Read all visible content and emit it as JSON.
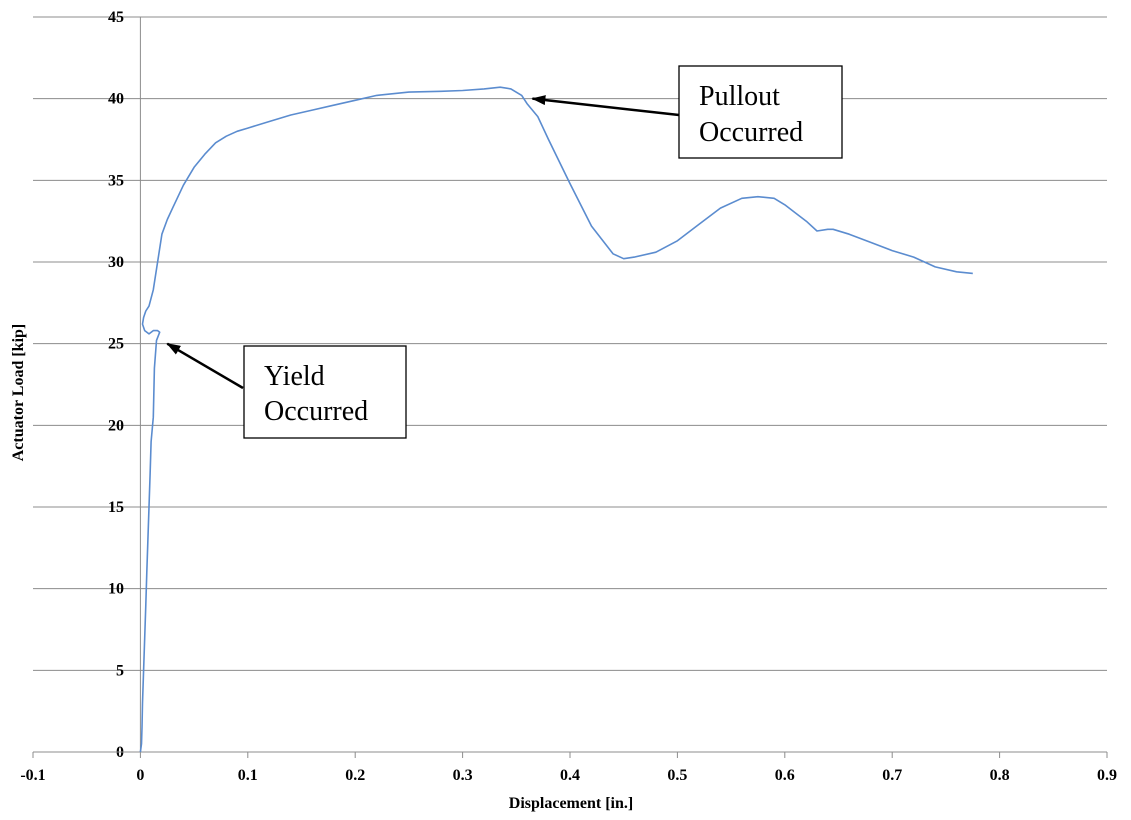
{
  "chart_data": {
    "type": "line",
    "xlabel": "Displacement [in.]",
    "ylabel": "Actuator Load [kip]",
    "xlim": [
      -0.1,
      0.9
    ],
    "ylim": [
      0,
      45
    ],
    "x_ticks": [
      "-0.1",
      "0",
      "0.1",
      "0.2",
      "0.3",
      "0.4",
      "0.5",
      "0.6",
      "0.7",
      "0.8",
      "0.9"
    ],
    "y_ticks": [
      "0",
      "5",
      "10",
      "15",
      "20",
      "25",
      "30",
      "35",
      "40",
      "45"
    ],
    "grid": "horizontal",
    "line_color": "#5b8ccf",
    "series": [
      {
        "x": [
          0.0,
          0.001,
          0.0015,
          0.002,
          0.003,
          0.004,
          0.005,
          0.006,
          0.007,
          0.008,
          0.009,
          0.01,
          0.012,
          0.013,
          0.015,
          0.018,
          0.016,
          0.012,
          0.008,
          0.004,
          0.002,
          0.003,
          0.005,
          0.008,
          0.012,
          0.016,
          0.02,
          0.025,
          0.03,
          0.04,
          0.05,
          0.06,
          0.07,
          0.08,
          0.09,
          0.1,
          0.12,
          0.14,
          0.16,
          0.18,
          0.2,
          0.22,
          0.25,
          0.28,
          0.3,
          0.32,
          0.335,
          0.345,
          0.355,
          0.36,
          0.37,
          0.38,
          0.4,
          0.42,
          0.44,
          0.45,
          0.46,
          0.48,
          0.5,
          0.52,
          0.54,
          0.56,
          0.575,
          0.59,
          0.6,
          0.61,
          0.62,
          0.63,
          0.64,
          0.645,
          0.66,
          0.68,
          0.7,
          0.72,
          0.74,
          0.76,
          0.775
        ],
        "y": [
          0.0,
          0.5,
          1.5,
          3.0,
          5.0,
          7.0,
          9.0,
          11.0,
          13.0,
          15.0,
          17.0,
          19.0,
          20.5,
          23.5,
          25.2,
          25.7,
          25.8,
          25.8,
          25.6,
          25.8,
          26.2,
          26.6,
          27.0,
          27.3,
          28.3,
          30.0,
          31.7,
          32.6,
          33.3,
          34.7,
          35.8,
          36.6,
          37.3,
          37.7,
          38.0,
          38.2,
          38.6,
          39.0,
          39.3,
          39.6,
          39.9,
          40.2,
          40.4,
          40.45,
          40.5,
          40.6,
          40.7,
          40.6,
          40.2,
          39.7,
          38.9,
          37.5,
          34.8,
          32.2,
          30.5,
          30.2,
          30.3,
          30.6,
          31.3,
          32.3,
          33.3,
          33.9,
          34.0,
          33.9,
          33.5,
          33.0,
          32.5,
          31.9,
          32.0,
          32.0,
          31.7,
          31.2,
          30.7,
          30.3,
          29.7,
          29.4,
          29.3
        ]
      }
    ],
    "annotations": [
      {
        "text_lines": [
          "Yield",
          "Occurred"
        ],
        "target_x": 0.025,
        "target_y": 25.0
      },
      {
        "text_lines": [
          "Pullout",
          "Occurred"
        ],
        "target_x": 0.365,
        "target_y": 40.0
      }
    ]
  }
}
